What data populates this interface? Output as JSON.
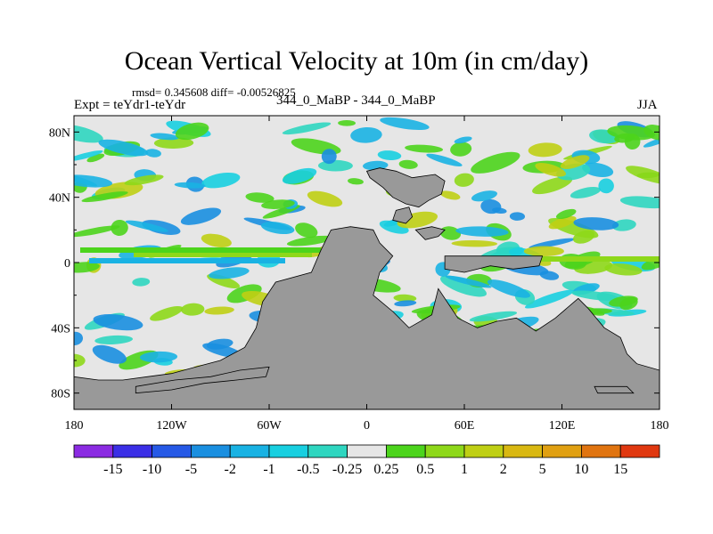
{
  "figure": {
    "title": "Ocean Vertical Velocity at 10m (in cm/day)",
    "stats": "rmsd= 0.345608 diff= -0.00526825",
    "expt": "Expt = teYdr1-teYdr",
    "cases": "344_0_MaBP - 344_0_MaBP",
    "season": "JJA"
  },
  "map": {
    "lat_ticks": [
      {
        "value": 80,
        "label": "80N"
      },
      {
        "value": 40,
        "label": "40N"
      },
      {
        "value": 0,
        "label": "0"
      },
      {
        "value": -40,
        "label": "40S"
      },
      {
        "value": -80,
        "label": "80S"
      }
    ],
    "lon_ticks": [
      {
        "value": -180,
        "label": "180"
      },
      {
        "value": -120,
        "label": "120W"
      },
      {
        "value": -60,
        "label": "60W"
      },
      {
        "value": 0,
        "label": "0"
      },
      {
        "value": 60,
        "label": "60E"
      },
      {
        "value": 120,
        "label": "120E"
      },
      {
        "value": 180,
        "label": "180"
      }
    ],
    "lat_range": [
      -90,
      90
    ],
    "lon_range": [
      -180,
      180
    ],
    "land_color": "#999999",
    "neutral_color": "#e6e6e6"
  },
  "colorbar": {
    "colors": [
      "#8b2be2",
      "#3b2fe6",
      "#2659e6",
      "#1a8fe0",
      "#19b2e3",
      "#18cfe0",
      "#2fd6c0",
      "#e6e6e6",
      "#4cd41c",
      "#8ed81a",
      "#bfcf14",
      "#d9b812",
      "#e0a012",
      "#e07410",
      "#e03810"
    ],
    "labels": [
      "-15",
      "-10",
      "-5",
      "-2",
      "-1",
      "-0.5",
      "-0.25",
      "0.25",
      "0.5",
      "1",
      "2",
      "5",
      "10",
      "15"
    ]
  }
}
